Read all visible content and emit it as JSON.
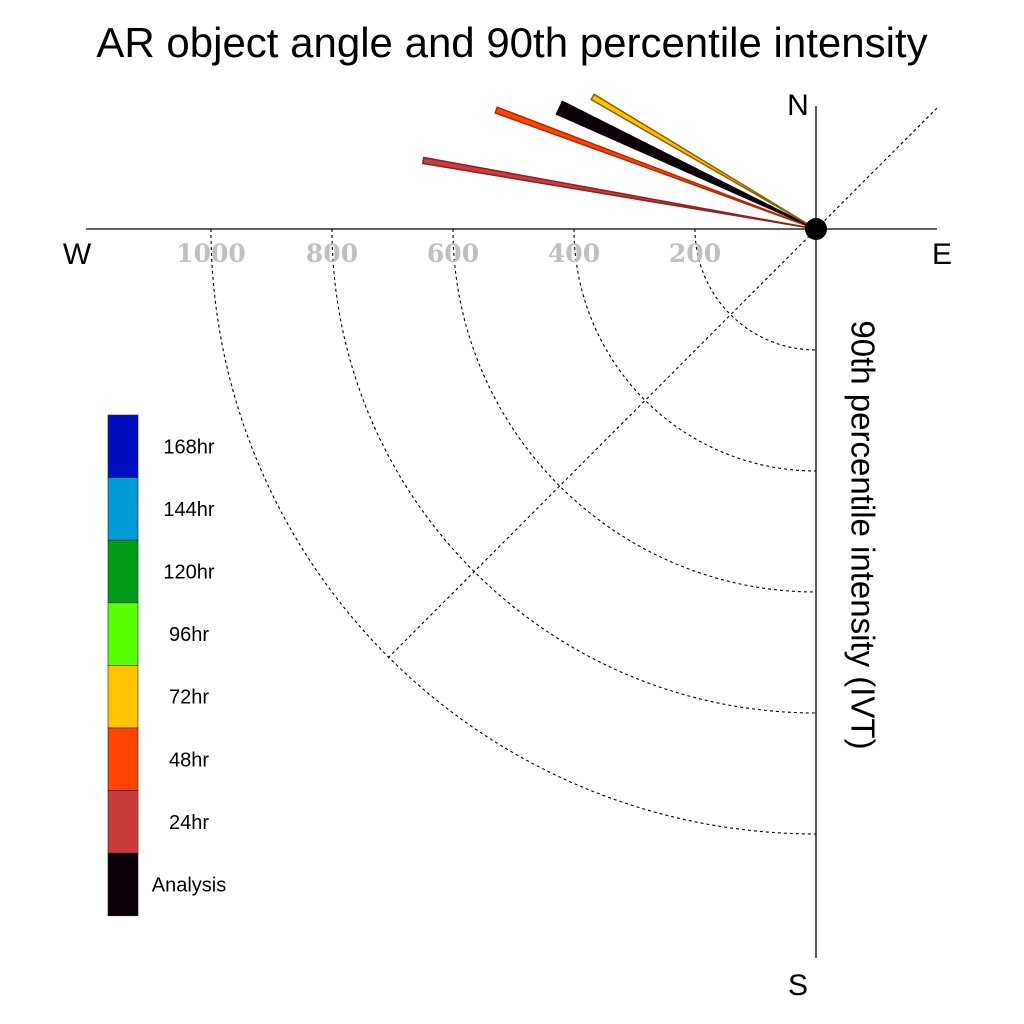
{
  "chart_data": {
    "type": "polar-vector",
    "title": "AR object angle and 90th percentile intensity",
    "ylabel": "90th percentile intensity (IVT)",
    "compass": {
      "north": "N",
      "south": "S",
      "east": "E",
      "west": "W"
    },
    "rlim": [
      0,
      1000
    ],
    "rticks": [
      200,
      400,
      600,
      800,
      1000
    ],
    "rtick_labels": [
      "200",
      "400",
      "600",
      "800",
      "1000"
    ],
    "grid": true,
    "legend": {
      "placement": "left",
      "items": [
        {
          "label": "168hr",
          "color": "#0010c0"
        },
        {
          "label": "144hr",
          "color": "#009ad8"
        },
        {
          "label": "120hr",
          "color": "#009c18"
        },
        {
          "label": "96hr",
          "color": "#58ff00"
        },
        {
          "label": "72hr",
          "color": "#ffc400"
        },
        {
          "label": "48hr",
          "color": "#ff4400"
        },
        {
          "label": "24hr",
          "color": "#cc3c3c"
        },
        {
          "label": "Analysis",
          "color": "#0c0008"
        }
      ]
    },
    "series": [
      {
        "name": "24hr",
        "angle_deg": 279.9,
        "intensity": 659,
        "color": "#cc3c3c",
        "outline": "#8a2020"
      },
      {
        "name": "48hr",
        "angle_deg": 290.4,
        "intensity": 564,
        "color": "#ff4400",
        "outline": "#b02800"
      },
      {
        "name": "Analysis",
        "angle_deg": 295.3,
        "intensity": 469,
        "color": "#0c0008",
        "outline": "#0c0008"
      },
      {
        "name": "72hr",
        "angle_deg": 300.6,
        "intensity": 429,
        "color": "#ffc400",
        "outline": "#8a6000"
      }
    ]
  }
}
